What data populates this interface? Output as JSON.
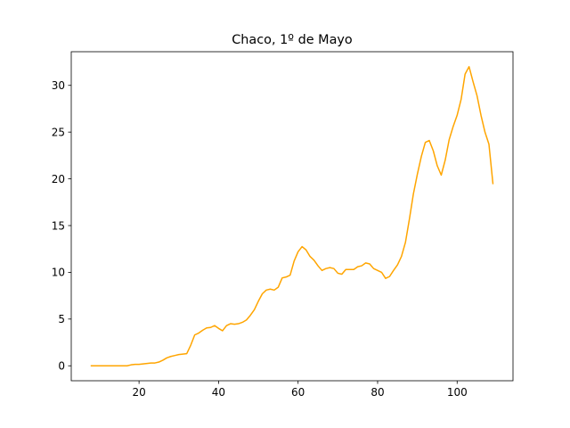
{
  "chart_data": {
    "type": "line",
    "title": "Chaco, 1º de Mayo",
    "xlabel": "",
    "ylabel": "",
    "xlim": [
      2.95,
      114.05
    ],
    "ylim": [
      -1.6,
      33.6
    ],
    "x_ticks": [
      20,
      40,
      60,
      80,
      100
    ],
    "x_tick_labels": [
      "20",
      "40",
      "60",
      "80",
      "100"
    ],
    "y_ticks": [
      0,
      5,
      10,
      15,
      20,
      25,
      30
    ],
    "y_tick_labels": [
      "0",
      "5",
      "10",
      "15",
      "20",
      "25",
      "30"
    ],
    "grid": false,
    "legend": "none",
    "series": [
      {
        "color": "#ffa500",
        "x": [
          8,
          9,
          10,
          11,
          12,
          13,
          14,
          15,
          16,
          17,
          18,
          19,
          20,
          21,
          22,
          23,
          24,
          25,
          26,
          27,
          28,
          29,
          30,
          31,
          32,
          33,
          34,
          35,
          36,
          37,
          38,
          39,
          40,
          41,
          42,
          43,
          44,
          45,
          46,
          47,
          48,
          49,
          50,
          51,
          52,
          53,
          54,
          55,
          56,
          57,
          58,
          59,
          60,
          61,
          62,
          63,
          64,
          65,
          66,
          67,
          68,
          69,
          70,
          71,
          72,
          73,
          74,
          75,
          76,
          77,
          78,
          79,
          80,
          81,
          82,
          83,
          84,
          85,
          86,
          87,
          88,
          89,
          90,
          91,
          92,
          93,
          94,
          95,
          96,
          97,
          98,
          99,
          100,
          101,
          102,
          103,
          104,
          105,
          106,
          107,
          108,
          109
        ],
        "y": [
          0,
          0,
          0,
          0,
          0,
          0,
          0,
          0,
          0,
          0,
          0.1,
          0.15,
          0.15,
          0.2,
          0.25,
          0.3,
          0.3,
          0.4,
          0.6,
          0.85,
          1.0,
          1.1,
          1.2,
          1.25,
          1.3,
          2.2,
          3.3,
          3.5,
          3.8,
          4.05,
          4.1,
          4.3,
          4.0,
          3.75,
          4.3,
          4.5,
          4.45,
          4.5,
          4.65,
          4.9,
          5.4,
          6.0,
          6.9,
          7.7,
          8.1,
          8.2,
          8.1,
          8.4,
          9.4,
          9.5,
          9.7,
          11.2,
          12.2,
          12.75,
          12.4,
          11.7,
          11.3,
          10.7,
          10.2,
          10.4,
          10.5,
          10.4,
          9.9,
          9.8,
          10.3,
          10.3,
          10.3,
          10.6,
          10.7,
          11.0,
          10.9,
          10.4,
          10.2,
          10.0,
          9.35,
          9.55,
          10.2,
          10.8,
          11.7,
          13.2,
          15.7,
          18.4,
          20.5,
          22.4,
          23.9,
          24.1,
          23.0,
          21.4,
          20.4,
          22.0,
          24.2,
          25.6,
          26.8,
          28.5,
          31.2,
          32.0,
          30.4,
          28.9,
          26.8,
          25.0,
          23.7,
          19.5
        ]
      }
    ]
  }
}
